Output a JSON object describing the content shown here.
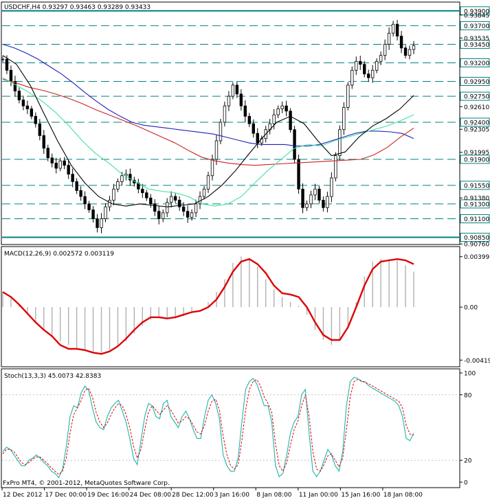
{
  "header": {
    "main_title": "USDCHF,H4  0.93297  0.93463  0.93289  0.93433",
    "macd_title": "MACD(12,26,9) 0.002572 0.003119",
    "stoch_title": "Stoch(13,3,3) 45.0073 42.8383",
    "copyright": "FxPro MT4, © 2001-2012, MetaQuotes Software Corp."
  },
  "colors": {
    "frame": "#000000",
    "level_line": "#008080",
    "level_label_bg": "#ffffff",
    "candle": "#000000",
    "ma_blue": "#1f1fbf",
    "ma_red": "#cc2222",
    "ma_green": "#40e0a0",
    "ma_black": "#000000",
    "macd_hist": "#b0b0b0",
    "macd_signal": "#dd0000",
    "stoch_main": "#20b2aa",
    "stoch_signal": "#dd0000"
  },
  "chart_data": [
    {
      "type": "candlestick",
      "title": "USDCHF,H4  0.93297  0.93463  0.93289  0.93433",
      "ylim": [
        0.9079,
        0.94
      ],
      "y_ticks": [
        "0.93845",
        "0.93535",
        "0.92610",
        "0.92305",
        "0.91995",
        "0.91380",
        "0.90760"
      ],
      "horizontal_levels": [
        "0.93900",
        "0.93700",
        "0.93450",
        "0.93200",
        "0.92950",
        "0.92750",
        "0.92400",
        "0.91900",
        "0.91550",
        "0.91300",
        "0.91100",
        "0.90850"
      ],
      "horizontal_level_values": [
        0.939,
        0.937,
        0.9345,
        0.932,
        0.9295,
        0.9275,
        0.924,
        0.919,
        0.9155,
        0.913,
        0.911,
        0.9085
      ],
      "close_path": [
        0.9325,
        0.931,
        0.9295,
        0.9282,
        0.927,
        0.9262,
        0.9258,
        0.9248,
        0.9238,
        0.9222,
        0.9205,
        0.9192,
        0.9185,
        0.9178,
        0.9188,
        0.9182,
        0.917,
        0.916,
        0.9148,
        0.914,
        0.913,
        0.9122,
        0.911,
        0.9098,
        0.911,
        0.9126,
        0.9135,
        0.915,
        0.916,
        0.9168,
        0.917,
        0.9162,
        0.9158,
        0.915,
        0.9145,
        0.9138,
        0.913,
        0.912,
        0.911,
        0.9118,
        0.9132,
        0.914,
        0.9135,
        0.9126,
        0.912,
        0.9112,
        0.9118,
        0.913,
        0.914,
        0.915,
        0.9168,
        0.919,
        0.9215,
        0.924,
        0.9262,
        0.9275,
        0.929,
        0.9278,
        0.9262,
        0.9248,
        0.9238,
        0.9225,
        0.9212,
        0.9218,
        0.923,
        0.9238,
        0.925,
        0.9258,
        0.9262,
        0.9255,
        0.923,
        0.919,
        0.915,
        0.9125,
        0.913,
        0.9142,
        0.915,
        0.9135,
        0.9125,
        0.914,
        0.9165,
        0.9195,
        0.923,
        0.926,
        0.929,
        0.931,
        0.9322,
        0.9318,
        0.9305,
        0.93,
        0.931,
        0.9322,
        0.933,
        0.9345,
        0.936,
        0.9372,
        0.9356,
        0.934,
        0.933,
        0.9338,
        0.9343
      ],
      "ma_blue": [
        0.9345,
        0.934,
        0.9333,
        0.9325,
        0.9315,
        0.9305,
        0.9293,
        0.928,
        0.9268,
        0.9257,
        0.9248,
        0.924,
        0.9236,
        0.9234,
        0.9232,
        0.923,
        0.9228,
        0.9226,
        0.9224,
        0.922,
        0.9216,
        0.9212,
        0.921,
        0.921,
        0.921,
        0.9208,
        0.9208,
        0.921,
        0.9215,
        0.922,
        0.9225,
        0.9228,
        0.9228,
        0.9227,
        0.9225,
        0.9218
      ],
      "ma_red": [
        0.9298,
        0.9293,
        0.9287,
        0.9283,
        0.9278,
        0.9272,
        0.9265,
        0.9257,
        0.925,
        0.9243,
        0.9236,
        0.9228,
        0.922,
        0.9212,
        0.9202,
        0.9193,
        0.9188,
        0.9185,
        0.9183,
        0.9182,
        0.9183,
        0.9184,
        0.9185,
        0.9186,
        0.9187,
        0.9188,
        0.9189,
        0.919,
        0.9196,
        0.9206,
        0.922,
        0.9232
      ],
      "ma_green": [
        0.93,
        0.929,
        0.928,
        0.9268,
        0.9253,
        0.9235,
        0.9215,
        0.9198,
        0.9185,
        0.917,
        0.916,
        0.915,
        0.9147,
        0.9145,
        0.914,
        0.913,
        0.9127,
        0.913,
        0.914,
        0.9158,
        0.9175,
        0.919,
        0.9205,
        0.921,
        0.9208,
        0.9215,
        0.922,
        0.9225,
        0.923,
        0.9235,
        0.9242,
        0.925
      ],
      "ma_black": [
        0.933,
        0.9318,
        0.929,
        0.9252,
        0.9215,
        0.9182,
        0.9158,
        0.914,
        0.913,
        0.9127,
        0.913,
        0.9128,
        0.9126,
        0.9128,
        0.913,
        0.914,
        0.9155,
        0.9175,
        0.9198,
        0.922,
        0.924,
        0.9248,
        0.9238,
        0.9215,
        0.9195,
        0.92,
        0.922,
        0.9235,
        0.9245,
        0.9258,
        0.9276
      ]
    },
    {
      "type": "line",
      "title": "MACD(12,26,9) 0.002572 0.003119",
      "ylim": [
        -0.0045,
        0.0043
      ],
      "y_ticks": [
        "0.00399",
        "0.00",
        "-0.00419"
      ],
      "histogram": [
        0.0012,
        0.0008,
        0.0002,
        -0.0006,
        -0.0012,
        -0.0018,
        -0.0022,
        -0.0027,
        -0.003,
        -0.0033,
        -0.0034,
        -0.0035,
        -0.0036,
        -0.0034,
        -0.0031,
        -0.0027,
        -0.0021,
        -0.0015,
        -0.001,
        -0.0008,
        -0.0009,
        -0.0009,
        -0.0007,
        -0.0004,
        0.0,
        0.0004,
        0.0012,
        0.0022,
        0.0035,
        0.004,
        0.0039,
        0.0032,
        0.0022,
        0.0014,
        0.0008,
        0.0004,
        0.0001,
        -0.0006,
        -0.0018,
        -0.0026,
        -0.003,
        -0.0026,
        -0.0014,
        0.0004,
        0.0024,
        0.0036,
        0.0038,
        0.0038,
        0.0037,
        0.0033,
        0.0028
      ],
      "signal": [
        0.0012,
        0.0008,
        0.0002,
        -0.0005,
        -0.0012,
        -0.0018,
        -0.0023,
        -0.003,
        -0.0033,
        -0.0033,
        -0.0034,
        -0.0036,
        -0.0037,
        -0.0035,
        -0.0031,
        -0.0025,
        -0.0018,
        -0.0012,
        -0.0008,
        -0.0008,
        -0.0009,
        -0.0008,
        -0.0006,
        -0.0004,
        -0.0003,
        0.0,
        0.0006,
        0.0016,
        0.0028,
        0.0036,
        0.0038,
        0.0034,
        0.0027,
        0.0017,
        0.0011,
        0.001,
        0.0008,
        0.0,
        -0.0012,
        -0.0022,
        -0.0026,
        -0.0026,
        -0.0016,
        0.0,
        0.0017,
        0.003,
        0.0036,
        0.0037,
        0.0038,
        0.0037,
        0.0034
      ]
    },
    {
      "type": "line",
      "title": "Stoch(13,3,3) 45.0073 42.8383",
      "ylim": [
        0,
        100
      ],
      "y_ticks": [
        "100",
        "80",
        "20",
        "0"
      ],
      "main": [
        28,
        32,
        30,
        25,
        20,
        15,
        15,
        20,
        22,
        25,
        22,
        18,
        15,
        10,
        8,
        4,
        12,
        32,
        60,
        70,
        68,
        82,
        88,
        84,
        68,
        55,
        50,
        48,
        60,
        68,
        72,
        75,
        65,
        55,
        40,
        22,
        16,
        38,
        60,
        72,
        70,
        60,
        58,
        72,
        75,
        60,
        55,
        50,
        60,
        65,
        58,
        48,
        40,
        40,
        60,
        75,
        80,
        72,
        58,
        25,
        15,
        10,
        10,
        22,
        55,
        85,
        92,
        95,
        90,
        80,
        70,
        70,
        55,
        15,
        5,
        8,
        25,
        45,
        55,
        60,
        80,
        85,
        45,
        10,
        5,
        10,
        20,
        30,
        25,
        15,
        10,
        28,
        70,
        92,
        96,
        95,
        92,
        92,
        88,
        86,
        84,
        82,
        80,
        78,
        76,
        74,
        70,
        60,
        40,
        38,
        45
      ],
      "signal": [
        26,
        30,
        30,
        28,
        23,
        18,
        16,
        18,
        21,
        23,
        23,
        20,
        17,
        13,
        10,
        7,
        10,
        22,
        45,
        62,
        68,
        75,
        84,
        86,
        78,
        64,
        55,
        50,
        54,
        62,
        68,
        72,
        70,
        62,
        50,
        33,
        22,
        30,
        48,
        64,
        70,
        66,
        62,
        66,
        70,
        66,
        60,
        54,
        56,
        60,
        58,
        52,
        46,
        44,
        52,
        65,
        74,
        76,
        66,
        42,
        25,
        15,
        12,
        16,
        38,
        66,
        85,
        92,
        94,
        88,
        78,
        72,
        64,
        35,
        15,
        10,
        18,
        34,
        48,
        56,
        70,
        80,
        60,
        28,
        12,
        10,
        16,
        24,
        26,
        20,
        14,
        22,
        48,
        78,
        92,
        94,
        93,
        91,
        90,
        88,
        86,
        84,
        82,
        80,
        78,
        76,
        74,
        68,
        52,
        44,
        43
      ]
    }
  ],
  "x_labels": [
    "12 Dec 2012",
    "17 Dec 00:00",
    "19 Dec 16:00",
    "24 Dec 08:00",
    "28 Dec 12:00",
    "3 Jan 16:00",
    "8 Jan 08:00",
    "11 Jan 00:00",
    "15 Jan 16:00",
    "18 Jan 08:00"
  ]
}
